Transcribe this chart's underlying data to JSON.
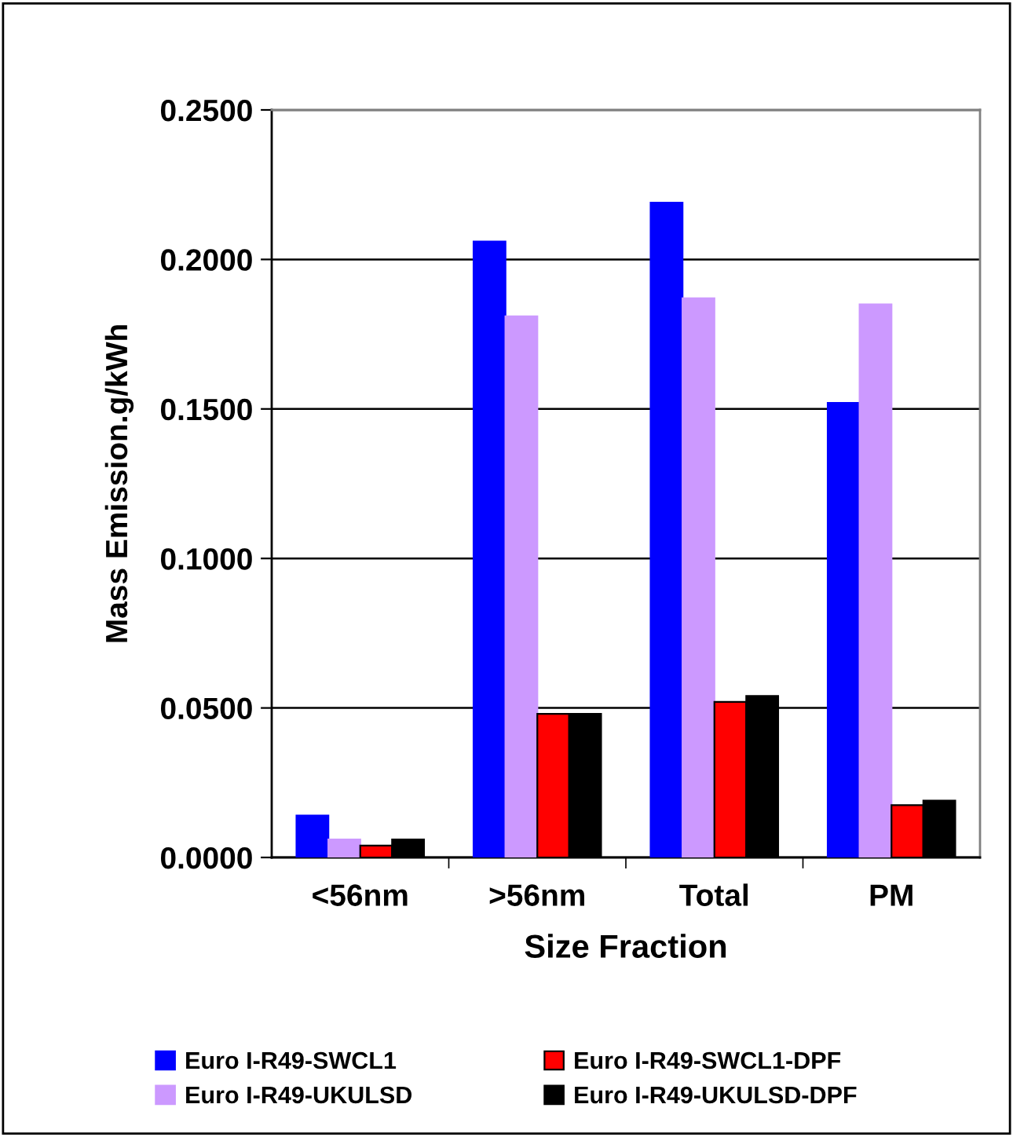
{
  "chart_data": {
    "type": "bar",
    "xlabel": "Size Fraction",
    "ylabel": "Mass Emission.g/kWh",
    "categories": [
      "<56nm",
      ">56nm",
      "Total",
      "PM"
    ],
    "series": [
      {
        "name": "Euro I-R49-SWCL1",
        "color": "#0000ff",
        "values": [
          0.014,
          0.206,
          0.219,
          0.152
        ]
      },
      {
        "name": "Euro I-R49-UKULSD",
        "color": "#cc99ff",
        "values": [
          0.006,
          0.181,
          0.187,
          0.185
        ]
      },
      {
        "name": "Euro I-R49-SWCL1-DPF",
        "color": "#ff0000",
        "values": [
          0.004,
          0.048,
          0.052,
          0.0175
        ]
      },
      {
        "name": "Euro I-R49-UKULSD-DPF",
        "color": "#000000",
        "values": [
          0.006,
          0.048,
          0.054,
          0.019
        ]
      }
    ],
    "ylim": [
      0,
      0.25
    ],
    "yticks": [
      {
        "value": 0,
        "label": "0.0000"
      },
      {
        "value": 0.05,
        "label": "0.0500"
      },
      {
        "value": 0.1,
        "label": "0.1000"
      },
      {
        "value": 0.15,
        "label": "0.1500"
      },
      {
        "value": 0.2,
        "label": "0.2000"
      },
      {
        "value": 0.25,
        "label": "0.2500"
      }
    ],
    "grid": "y",
    "legend": "bottom"
  }
}
